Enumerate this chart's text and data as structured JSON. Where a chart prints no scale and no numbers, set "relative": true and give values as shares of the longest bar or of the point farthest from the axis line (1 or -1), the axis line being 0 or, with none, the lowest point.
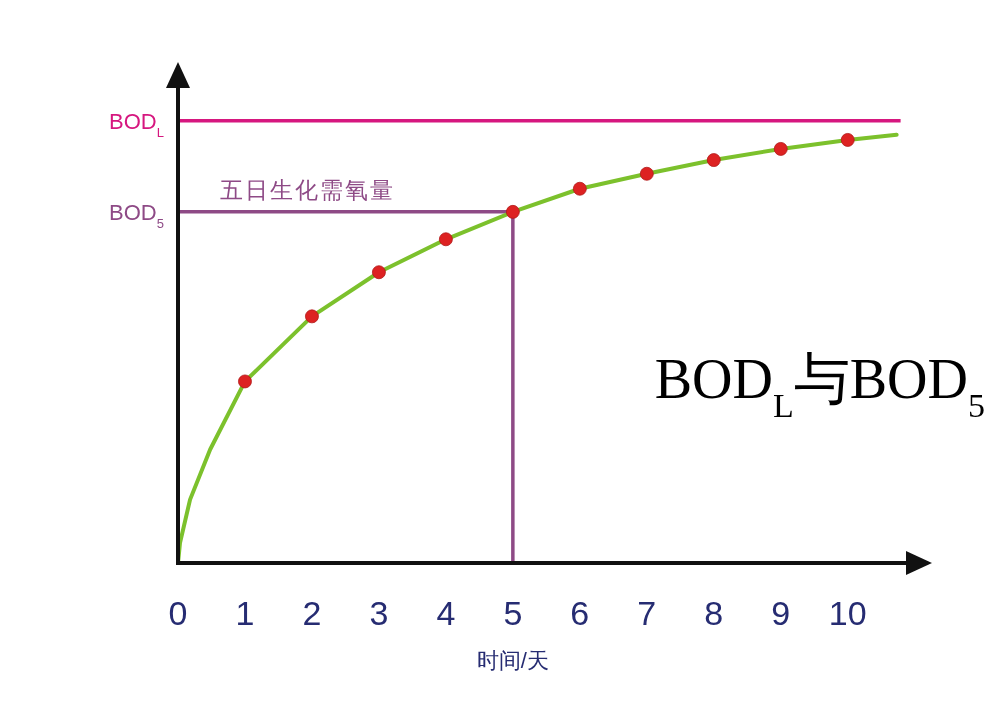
{
  "chart_data": {
    "type": "line",
    "relative": true,
    "xlabel": "时间/天",
    "xlim": [
      0,
      10.9
    ],
    "xticks": [
      0,
      1,
      2,
      3,
      4,
      5,
      6,
      7,
      8,
      9,
      10
    ],
    "series": [
      {
        "type": "line",
        "color": "#7cc12c",
        "x": [
          0,
          0.03,
          0.18,
          0.48,
          1,
          2,
          3,
          4,
          5,
          6,
          7,
          8,
          9,
          10,
          10.73
        ],
        "values": [
          0,
          0.047,
          0.148,
          0.265,
          0.424,
          0.576,
          0.679,
          0.756,
          0.82,
          0.874,
          0.909,
          0.941,
          0.967,
          0.988,
          1
        ]
      },
      {
        "type": "scatter",
        "color": "#dd2222",
        "marker": "circle",
        "x": [
          1,
          2,
          3,
          4,
          5,
          6,
          7,
          8,
          9,
          10
        ],
        "values": [
          0.424,
          0.576,
          0.679,
          0.756,
          0.82,
          0.874,
          0.909,
          0.941,
          0.967,
          0.988
        ]
      }
    ],
    "ref_lines": [
      {
        "axis": "y",
        "value": 1.033,
        "label": "BOD$_{L}$",
        "color": "#d6177f"
      },
      {
        "axis": "y",
        "value": 0.82,
        "label": "BOD$_{5}$",
        "color": "#8e4a86"
      },
      {
        "axis": "x",
        "value": 5,
        "label": null,
        "color": "#8e4a86"
      }
    ],
    "annotations": [
      {
        "text": "五日生化需氧量",
        "x": 0.63,
        "y": 0.82
      },
      "BOD$_{L}$与BOD$_{5}$"
    ]
  }
}
